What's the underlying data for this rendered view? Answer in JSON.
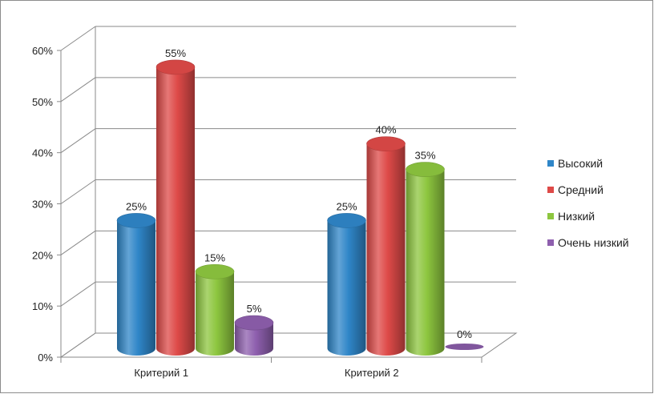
{
  "chart_data": {
    "type": "bar",
    "title": "",
    "xlabel": "",
    "ylabel": "",
    "categories": [
      "Критерий 1",
      "Критерий 2"
    ],
    "ylim": [
      0,
      60
    ],
    "y_ticks": [
      "0%",
      "10%",
      "20%",
      "30%",
      "40%",
      "50%",
      "60%"
    ],
    "series": [
      {
        "name": "Высокий",
        "values": [
          25,
          25
        ],
        "labels": [
          "25%",
          "25%"
        ],
        "color": "#2f86c8"
      },
      {
        "name": "Средний",
        "values": [
          55,
          40
        ],
        "labels": [
          "55%",
          "40%"
        ],
        "color": "#de4a48"
      },
      {
        "name": "Низкий",
        "values": [
          15,
          35
        ],
        "labels": [
          "15%",
          "35%"
        ],
        "color": "#8dc63f"
      },
      {
        "name": "Очень низкий",
        "values": [
          5,
          0
        ],
        "labels": [
          "5%",
          "0%"
        ],
        "color": "#8e5fae"
      }
    ],
    "grid": true,
    "legend_position": "right",
    "style": "3d-cylinder"
  }
}
